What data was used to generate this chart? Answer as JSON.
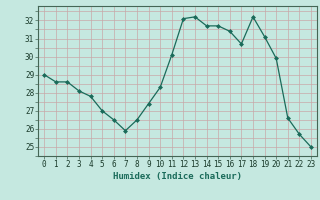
{
  "x": [
    0,
    1,
    2,
    3,
    4,
    5,
    6,
    7,
    8,
    9,
    10,
    11,
    12,
    13,
    14,
    15,
    16,
    17,
    18,
    19,
    20,
    21,
    22,
    23
  ],
  "y": [
    29.0,
    28.6,
    28.6,
    28.1,
    27.8,
    27.0,
    26.5,
    25.9,
    26.5,
    27.4,
    28.3,
    30.1,
    32.1,
    32.2,
    31.7,
    31.7,
    31.4,
    30.7,
    32.2,
    31.1,
    29.9,
    26.6,
    25.7,
    25.0
  ],
  "line_color": "#1a6b5a",
  "marker": "D",
  "marker_size": 2.0,
  "bg_color": "#c5e8e0",
  "grid_color": "#c8a8a8",
  "xlabel": "Humidex (Indice chaleur)",
  "ylim": [
    24.5,
    32.8
  ],
  "xlim": [
    -0.5,
    23.5
  ],
  "yticks": [
    25,
    26,
    27,
    28,
    29,
    30,
    31,
    32
  ],
  "xticks": [
    0,
    1,
    2,
    3,
    4,
    5,
    6,
    7,
    8,
    9,
    10,
    11,
    12,
    13,
    14,
    15,
    16,
    17,
    18,
    19,
    20,
    21,
    22,
    23
  ],
  "tick_fontsize": 5.5,
  "xlabel_fontsize": 6.5,
  "linewidth": 0.9
}
